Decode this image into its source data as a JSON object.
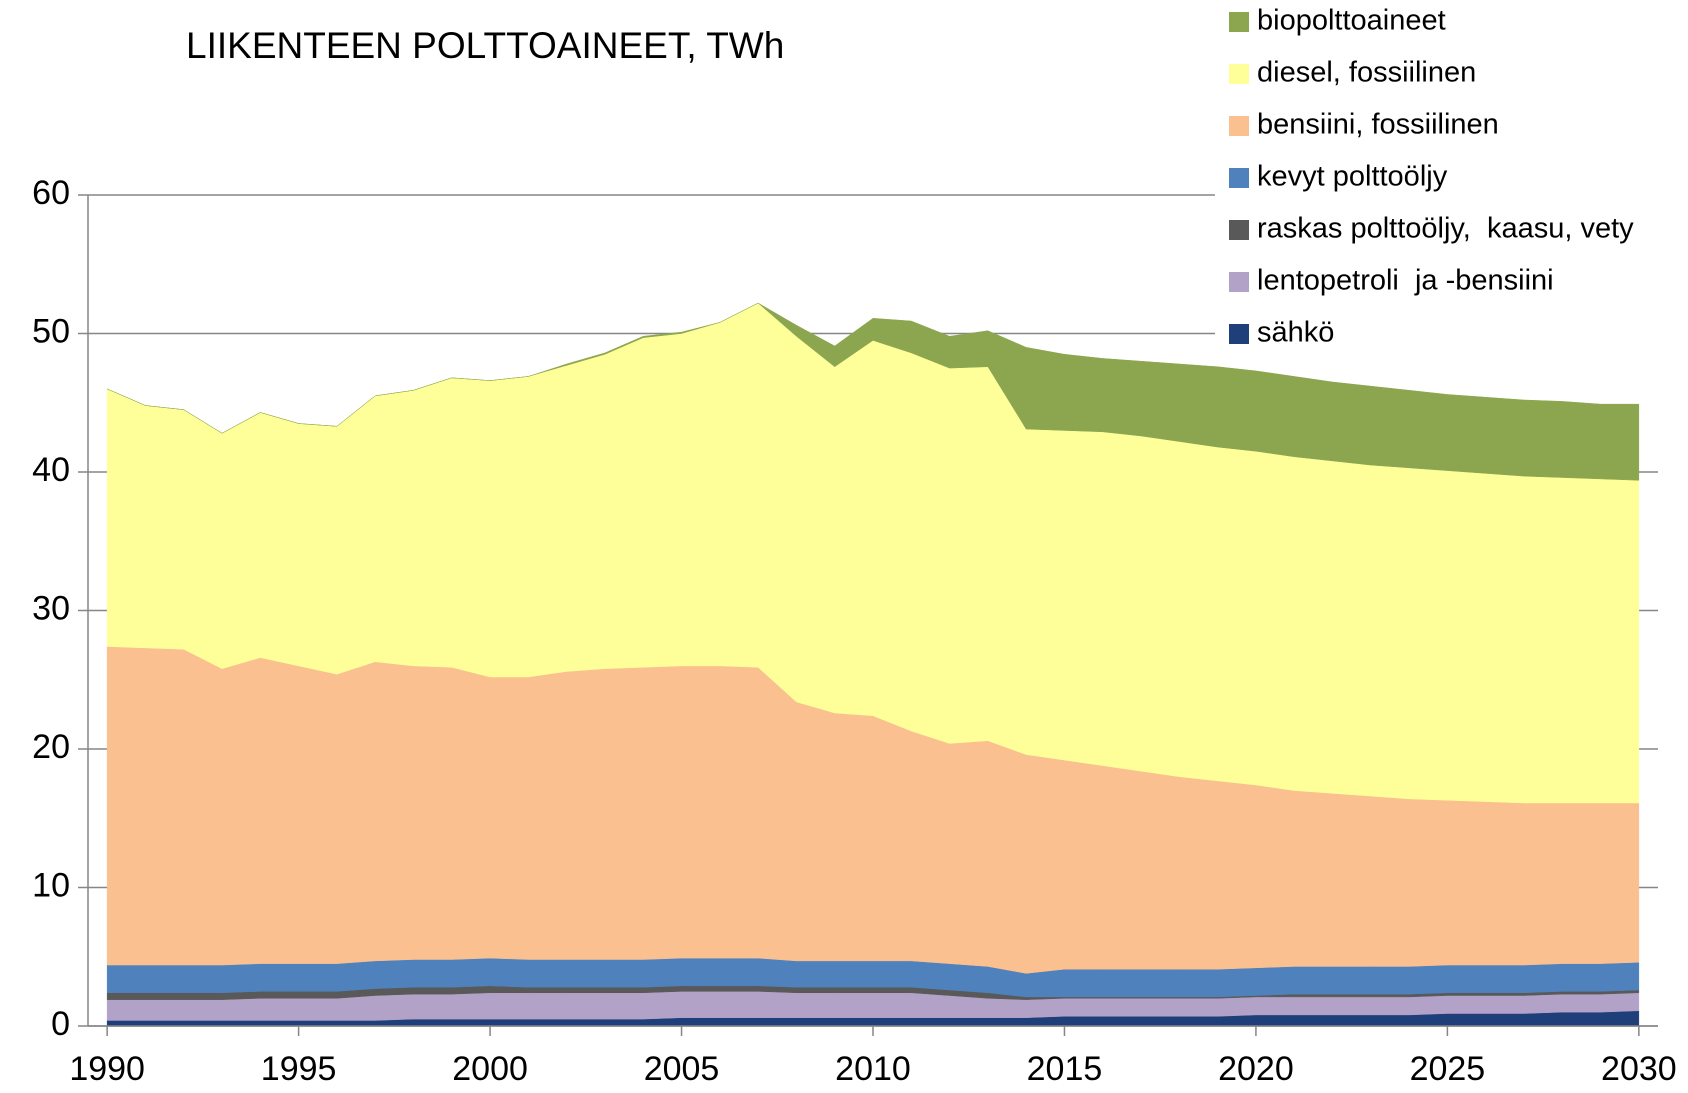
{
  "chart_data": {
    "type": "area",
    "stacked": true,
    "title": "LIIKENTEEN POLTTOAINEET, TWh",
    "x": [
      1990,
      1991,
      1992,
      1993,
      1994,
      1995,
      1996,
      1997,
      1998,
      1999,
      2000,
      2001,
      2002,
      2003,
      2004,
      2005,
      2006,
      2007,
      2008,
      2009,
      2010,
      2011,
      2012,
      2013,
      2014,
      2015,
      2016,
      2017,
      2018,
      2019,
      2020,
      2021,
      2022,
      2023,
      2024,
      2025,
      2026,
      2027,
      2028,
      2029,
      2030
    ],
    "xlim": [
      1989.5,
      2030.5
    ],
    "xticks": [
      1990,
      1995,
      2000,
      2005,
      2010,
      2015,
      2020,
      2025,
      2030
    ],
    "ylim": [
      0,
      60
    ],
    "yticks": [
      0,
      10,
      20,
      30,
      40,
      50,
      60
    ],
    "grid": true,
    "legend": "top-right",
    "series": [
      {
        "name": "sähkö",
        "color": "#1f3f7a",
        "values": [
          0.4,
          0.4,
          0.4,
          0.4,
          0.4,
          0.4,
          0.4,
          0.4,
          0.5,
          0.5,
          0.5,
          0.5,
          0.5,
          0.5,
          0.5,
          0.6,
          0.6,
          0.6,
          0.6,
          0.6,
          0.6,
          0.6,
          0.6,
          0.6,
          0.6,
          0.7,
          0.7,
          0.7,
          0.7,
          0.7,
          0.8,
          0.8,
          0.8,
          0.8,
          0.8,
          0.9,
          0.9,
          0.9,
          1.0,
          1.0,
          1.1
        ]
      },
      {
        "name": "lentopetroli  ja -bensiini",
        "color": "#b3a2c7",
        "values": [
          1.5,
          1.5,
          1.5,
          1.5,
          1.6,
          1.6,
          1.6,
          1.8,
          1.8,
          1.8,
          1.9,
          1.9,
          1.9,
          1.9,
          1.9,
          1.9,
          1.9,
          1.9,
          1.8,
          1.8,
          1.8,
          1.8,
          1.6,
          1.4,
          1.3,
          1.3,
          1.3,
          1.3,
          1.3,
          1.3,
          1.3,
          1.3,
          1.3,
          1.3,
          1.3,
          1.3,
          1.3,
          1.3,
          1.3,
          1.3,
          1.3
        ]
      },
      {
        "name": "raskas polttoöljy,  kaasu, vety",
        "color": "#595959",
        "values": [
          0.5,
          0.5,
          0.5,
          0.5,
          0.5,
          0.5,
          0.5,
          0.5,
          0.5,
          0.5,
          0.5,
          0.4,
          0.4,
          0.4,
          0.4,
          0.4,
          0.4,
          0.4,
          0.4,
          0.4,
          0.4,
          0.4,
          0.4,
          0.4,
          0.2,
          0.1,
          0.1,
          0.1,
          0.1,
          0.1,
          0.1,
          0.2,
          0.2,
          0.2,
          0.2,
          0.2,
          0.2,
          0.2,
          0.2,
          0.2,
          0.2
        ]
      },
      {
        "name": "kevyt polttoöljy",
        "color": "#4f81bd",
        "values": [
          2.0,
          2.0,
          2.0,
          2.0,
          2.0,
          2.0,
          2.0,
          2.0,
          2.0,
          2.0,
          2.0,
          2.0,
          2.0,
          2.0,
          2.0,
          2.0,
          2.0,
          2.0,
          1.9,
          1.9,
          1.9,
          1.9,
          1.9,
          1.9,
          1.7,
          2.0,
          2.0,
          2.0,
          2.0,
          2.0,
          2.0,
          2.0,
          2.0,
          2.0,
          2.0,
          2.0,
          2.0,
          2.0,
          2.0,
          2.0,
          2.0
        ]
      },
      {
        "name": "bensiini, fossiilinen",
        "color": "#fac090",
        "values": [
          23.0,
          22.9,
          22.8,
          21.4,
          22.1,
          21.5,
          20.9,
          21.6,
          21.2,
          21.1,
          20.3,
          20.4,
          20.8,
          21.0,
          21.1,
          21.1,
          21.1,
          21.0,
          18.7,
          17.9,
          17.7,
          16.6,
          15.9,
          16.3,
          15.8,
          15.1,
          14.7,
          14.3,
          13.9,
          13.6,
          13.2,
          12.7,
          12.5,
          12.3,
          12.1,
          11.9,
          11.8,
          11.7,
          11.6,
          11.6,
          11.5
        ]
      },
      {
        "name": "diesel, fossiilinen",
        "color": "#ffff99",
        "values": [
          18.6,
          17.5,
          17.3,
          17.0,
          17.7,
          17.5,
          17.9,
          19.2,
          19.9,
          20.9,
          21.4,
          21.7,
          22.1,
          22.7,
          23.8,
          24.0,
          24.8,
          26.3,
          26.4,
          25.0,
          27.1,
          27.3,
          27.1,
          27.0,
          23.5,
          23.8,
          24.1,
          24.2,
          24.2,
          24.1,
          24.1,
          24.1,
          24.0,
          23.9,
          23.9,
          23.8,
          23.7,
          23.6,
          23.5,
          23.4,
          23.3
        ]
      },
      {
        "name": "biopolttoaineet",
        "color": "#8ca650",
        "values": [
          0,
          0,
          0,
          0,
          0,
          0,
          0,
          0,
          0,
          0,
          0,
          0,
          0.1,
          0.1,
          0.1,
          0.1,
          0,
          0,
          0.8,
          1.5,
          1.6,
          2.3,
          2.3,
          2.6,
          5.9,
          5.5,
          5.3,
          5.4,
          5.6,
          5.8,
          5.8,
          5.8,
          5.7,
          5.7,
          5.6,
          5.5,
          5.5,
          5.5,
          5.5,
          5.4,
          5.5
        ]
      }
    ]
  }
}
